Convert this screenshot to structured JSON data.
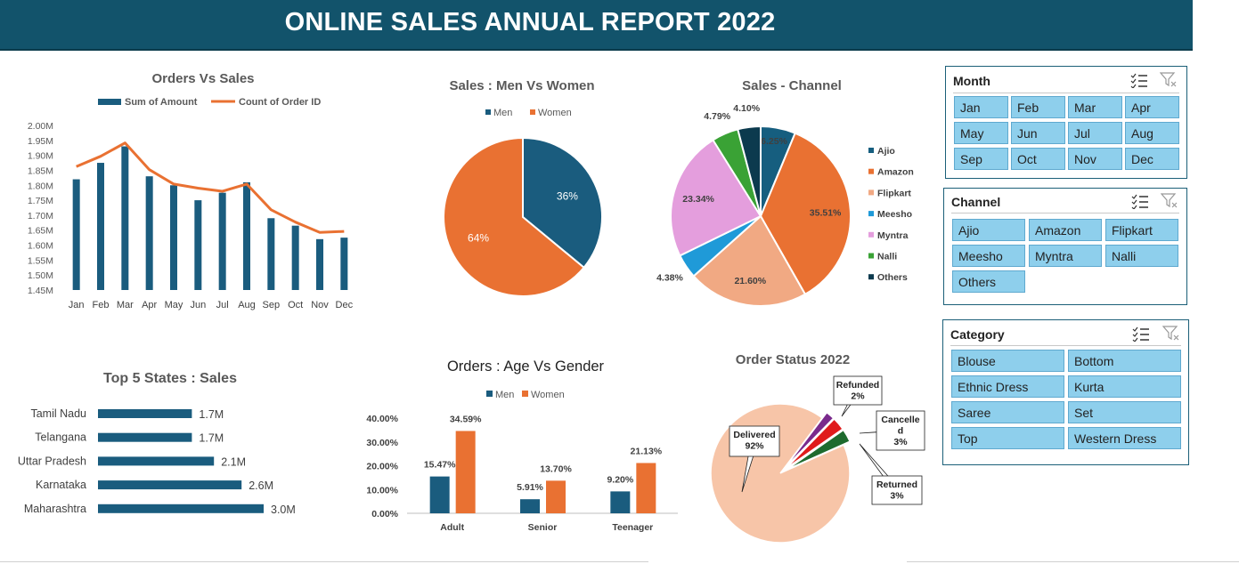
{
  "page_title": "ONLINE SALES  ANNUAL REPORT 2022",
  "colors": {
    "blue": "#1a5c7e",
    "orange": "#e97132",
    "banner": "#12536b",
    "slicer_button": "#8ecfec"
  },
  "chart_data": [
    {
      "id": "orders_vs_sales",
      "type": "bar+line",
      "title": "Orders Vs Sales",
      "categories": [
        "Jan",
        "Feb",
        "Mar",
        "Apr",
        "May",
        "Jun",
        "Jul",
        "Aug",
        "Sep",
        "Oct",
        "Nov",
        "Dec"
      ],
      "series": [
        {
          "name": "Sum of Amount",
          "type": "bar",
          "axis": "left",
          "values": [
            1.82,
            1.875,
            1.93,
            1.83,
            1.8,
            1.75,
            1.775,
            1.81,
            1.69,
            1.665,
            1.62,
            1.625
          ]
        },
        {
          "name": "Count of Order ID",
          "type": "line",
          "axis": "right",
          "values": [
            2700,
            2750,
            2815,
            2685,
            2615,
            2595,
            2580,
            2615,
            2490,
            2430,
            2380,
            2385
          ]
        }
      ],
      "left_axis": {
        "ylim": [
          1.45,
          2.0
        ],
        "ticks": [
          "1.45M",
          "1.50M",
          "1.55M",
          "1.60M",
          "1.65M",
          "1.70M",
          "1.75M",
          "1.80M",
          "1.85M",
          "1.90M",
          "1.95M",
          "2.00M"
        ]
      },
      "right_axis": {
        "ylim": [
          2100,
          2900
        ],
        "ticks": [
          "2100",
          "2200",
          "2300",
          "2400",
          "2500",
          "2600",
          "2700",
          "2800",
          "2900"
        ]
      },
      "legend": "top"
    },
    {
      "id": "men_vs_women",
      "type": "pie",
      "title": "Sales : Men Vs Women",
      "slices": [
        {
          "name": "Men",
          "value": 36,
          "label": "36%",
          "color": "#1a5c7e"
        },
        {
          "name": "Women",
          "value": 64,
          "label": "64%",
          "color": "#e97132"
        }
      ],
      "legend": "top"
    },
    {
      "id": "sales_channel",
      "type": "pie",
      "title": "Sales - Channel",
      "slices": [
        {
          "name": "Ajio",
          "value": 6.25,
          "label": "6.25%",
          "color": "#165e7f"
        },
        {
          "name": "Amazon",
          "value": 35.51,
          "label": "35.51%",
          "color": "#e97132"
        },
        {
          "name": "Flipkart",
          "value": 21.6,
          "label": "21.60%",
          "color": "#f1a983"
        },
        {
          "name": "Meesho",
          "value": 4.38,
          "label": "4.38%",
          "color": "#1f9ad8"
        },
        {
          "name": "Myntra",
          "value": 23.34,
          "label": "23.34%",
          "color": "#e49edd"
        },
        {
          "name": "Nalli",
          "value": 4.79,
          "label": "4.79%",
          "color": "#3aa235"
        },
        {
          "name": "Others",
          "value": 4.1,
          "label": "4.10%",
          "color": "#0c3a4e"
        }
      ],
      "legend": "right"
    },
    {
      "id": "top_states",
      "type": "bar",
      "orientation": "horizontal",
      "title": "Top 5 States : Sales",
      "categories": [
        "Tamil Nadu",
        "Telangana",
        "Uttar Pradesh",
        "Karnataka",
        "Maharashtra"
      ],
      "values": [
        1.7,
        1.7,
        2.1,
        2.6,
        3.0
      ],
      "labels": [
        "1.7M",
        "1.7M",
        "2.1M",
        "2.6M",
        "3.0M"
      ]
    },
    {
      "id": "age_vs_gender",
      "type": "bar",
      "title": "Orders : Age Vs Gender",
      "categories": [
        "Adult",
        "Senior",
        "Teenager"
      ],
      "series": [
        {
          "name": "Men",
          "values": [
            15.47,
            5.91,
            9.2
          ],
          "labels": [
            "15.47%",
            "5.91%",
            "9.20%"
          ]
        },
        {
          "name": "Women",
          "values": [
            34.59,
            13.7,
            21.13
          ],
          "labels": [
            "34.59%",
            "13.70%",
            "21.13%"
          ]
        }
      ],
      "ylim": [
        0,
        40
      ],
      "yticks": [
        "0.00%",
        "10.00%",
        "20.00%",
        "30.00%",
        "40.00%"
      ],
      "legend": "top"
    },
    {
      "id": "order_status",
      "type": "pie",
      "title": "Order Status 2022",
      "slices": [
        {
          "name": "Delivered",
          "value": 92,
          "label": "92%",
          "color": "#f7c5a8"
        },
        {
          "name": "Refunded",
          "value": 2,
          "label": "2%",
          "color": "#7a2a8c"
        },
        {
          "name": "Cancelled",
          "display_name": "Cancelle\nd",
          "value": 3,
          "label": "3%",
          "color": "#e01b1b"
        },
        {
          "name": "Returned",
          "value": 3,
          "label": "3%",
          "color": "#1e6b2e"
        }
      ]
    }
  ],
  "slicers": {
    "month": {
      "title": "Month",
      "items": [
        "Jan",
        "Feb",
        "Mar",
        "Apr",
        "May",
        "Jun",
        "Jul",
        "Aug",
        "Sep",
        "Oct",
        "Nov",
        "Dec"
      ]
    },
    "channel": {
      "title": "Channel",
      "items": [
        "Ajio",
        "Amazon",
        "Flipkart",
        "Meesho",
        "Myntra",
        "Nalli",
        "Others"
      ]
    },
    "category": {
      "title": "Category",
      "items": [
        "Blouse",
        "Bottom",
        "Ethnic Dress",
        "Kurta",
        "Saree",
        "Set",
        "Top",
        "Western Dress"
      ]
    }
  }
}
